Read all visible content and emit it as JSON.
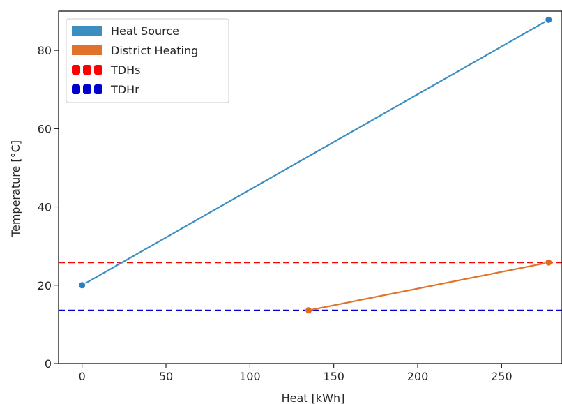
{
  "chart_data": {
    "type": "line",
    "title": "",
    "xlabel": "Heat [kWh]",
    "ylabel": "Temperature [°C]",
    "xlim": [
      -14,
      286
    ],
    "ylim": [
      0,
      90
    ],
    "xticks": [
      0,
      50,
      100,
      150,
      200,
      250
    ],
    "yticks": [
      0,
      20,
      40,
      60,
      80
    ],
    "grid": false,
    "legend_position": "top-left",
    "series": [
      {
        "name": "Heat Source",
        "color": "#3b8ec0",
        "marker": "#2b7fc0",
        "x": [
          0,
          278
        ],
        "y": [
          20,
          87.8
        ]
      },
      {
        "name": "District Heating",
        "color": "#e0722c",
        "marker": "#e06a20",
        "x": [
          135,
          278
        ],
        "y": [
          13.6,
          25.8
        ]
      }
    ],
    "reference_lines": [
      {
        "name": "TDHs",
        "color": "#ff0000",
        "style": "dashed",
        "y": 25.8
      },
      {
        "name": "TDHr",
        "color": "#0000cc",
        "style": "dashed",
        "y": 13.6
      }
    ]
  }
}
